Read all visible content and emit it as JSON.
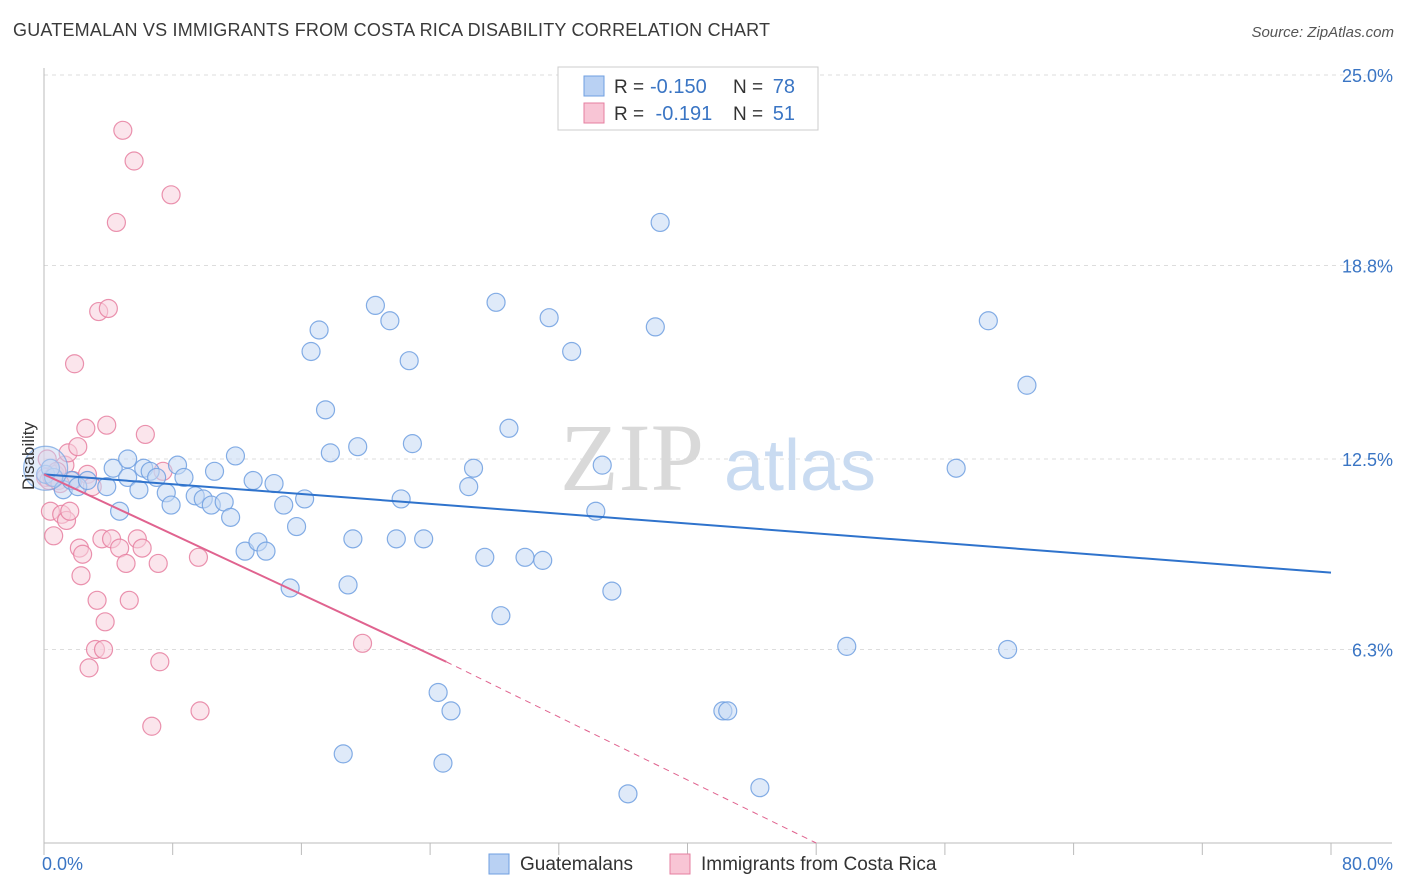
{
  "title": "GUATEMALAN VS IMMIGRANTS FROM COSTA RICA DISABILITY CORRELATION CHART",
  "source": "Source: ZipAtlas.com",
  "watermark": {
    "zip": "ZIP",
    "atlas": "atlas"
  },
  "legend_top": [
    {
      "r_label": "R =",
      "r_value": "-0.150",
      "n_label": "N =",
      "n_value": "78",
      "color": "#6f9fe0",
      "fill": "#b9d1f3"
    },
    {
      "r_label": "R =",
      "r_value": " -0.191",
      "n_label": "N =",
      "n_value": "51",
      "color": "#e67fa0",
      "fill": "#f8c5d5"
    }
  ],
  "legend_bottom": [
    {
      "label": "Guatemalans",
      "fill": "#b9d1f3",
      "stroke": "#6f9fe0"
    },
    {
      "label": "Immigrants from Costa Rica",
      "fill": "#f8c5d5",
      "stroke": "#e67fa0"
    }
  ],
  "colors": {
    "blue_point": "#6f9fe0",
    "blue_fill": "#c4d8f4",
    "blue_line": "#2f73cc",
    "pink_point": "#e67fa0",
    "pink_fill": "#f8d0dd",
    "pink_line": "#e0638f",
    "axis_text": "#3a75c4",
    "grid": "#dddddd"
  },
  "chart_data": {
    "type": "scatter",
    "xlabel": "",
    "ylabel": "Disability",
    "xlim": [
      0,
      80
    ],
    "ylim": [
      0,
      25
    ],
    "x_tick_labels": [
      {
        "value": 0,
        "label": "0.0%"
      },
      {
        "value": 80,
        "label": "80.0%"
      }
    ],
    "y_tick_labels": [
      {
        "value": 25.0,
        "label": "25.0%"
      },
      {
        "value": 18.8,
        "label": "18.8%"
      },
      {
        "value": 12.5,
        "label": "12.5%"
      },
      {
        "value": 6.3,
        "label": "6.3%"
      }
    ],
    "series": [
      {
        "name": "Guatemalans",
        "r": -0.15,
        "n": 78,
        "trend": {
          "x": [
            0,
            80
          ],
          "y": [
            12.0,
            8.8
          ]
        },
        "points": [
          [
            0.1,
            12.0
          ],
          [
            0.6,
            11.9
          ],
          [
            1.2,
            11.5
          ],
          [
            1.7,
            11.8
          ],
          [
            2.1,
            11.6
          ],
          [
            2.7,
            11.8
          ],
          [
            3.9,
            11.6
          ],
          [
            4.3,
            12.2
          ],
          [
            4.7,
            10.8
          ],
          [
            5.2,
            11.9
          ],
          [
            5.2,
            12.5
          ],
          [
            5.9,
            11.5
          ],
          [
            6.2,
            12.2
          ],
          [
            6.6,
            12.1
          ],
          [
            7.0,
            11.9
          ],
          [
            7.6,
            11.4
          ],
          [
            7.9,
            11.0
          ],
          [
            8.3,
            12.3
          ],
          [
            8.7,
            11.9
          ],
          [
            9.4,
            11.3
          ],
          [
            9.9,
            11.2
          ],
          [
            10.4,
            11.0
          ],
          [
            10.6,
            12.1
          ],
          [
            11.2,
            11.1
          ],
          [
            11.6,
            10.6
          ],
          [
            11.9,
            12.6
          ],
          [
            12.5,
            9.5
          ],
          [
            13.0,
            11.8
          ],
          [
            13.3,
            9.8
          ],
          [
            13.8,
            9.5
          ],
          [
            14.3,
            11.7
          ],
          [
            14.9,
            11.0
          ],
          [
            15.3,
            8.3
          ],
          [
            15.7,
            10.3
          ],
          [
            16.2,
            11.2
          ],
          [
            16.6,
            16.0
          ],
          [
            17.1,
            16.7
          ],
          [
            17.5,
            14.1
          ],
          [
            17.8,
            12.7
          ],
          [
            18.6,
            2.9
          ],
          [
            18.9,
            8.4
          ],
          [
            19.2,
            9.9
          ],
          [
            19.5,
            12.9
          ],
          [
            20.6,
            17.5
          ],
          [
            21.5,
            17.0
          ],
          [
            21.9,
            9.9
          ],
          [
            22.2,
            11.2
          ],
          [
            22.7,
            15.7
          ],
          [
            22.9,
            13.0
          ],
          [
            23.6,
            9.9
          ],
          [
            24.5,
            4.9
          ],
          [
            24.8,
            2.6
          ],
          [
            25.3,
            4.3
          ],
          [
            26.4,
            11.6
          ],
          [
            26.7,
            12.2
          ],
          [
            27.4,
            9.3
          ],
          [
            28.1,
            17.6
          ],
          [
            28.4,
            7.4
          ],
          [
            28.9,
            13.5
          ],
          [
            29.9,
            9.3
          ],
          [
            31.0,
            9.2
          ],
          [
            31.4,
            17.1
          ],
          [
            32.8,
            16.0
          ],
          [
            34.3,
            10.8
          ],
          [
            34.7,
            12.3
          ],
          [
            35.3,
            8.2
          ],
          [
            36.3,
            1.6
          ],
          [
            38.0,
            16.8
          ],
          [
            38.3,
            20.2
          ],
          [
            42.2,
            4.3
          ],
          [
            42.5,
            4.3
          ],
          [
            44.5,
            1.8
          ],
          [
            49.9,
            6.4
          ],
          [
            56.7,
            12.2
          ],
          [
            58.7,
            17.0
          ],
          [
            59.9,
            6.3
          ],
          [
            61.1,
            14.9
          ],
          [
            0.4,
            12.2
          ]
        ]
      },
      {
        "name": "Immigrants from Costa Rica",
        "r": -0.191,
        "n": 51,
        "trend": {
          "x": [
            0,
            25
          ],
          "y": [
            12.0,
            5.9
          ]
        },
        "trend_dashed": {
          "x": [
            25,
            48
          ],
          "y": [
            5.9,
            0.0
          ]
        },
        "points": [
          [
            0.1,
            11.9
          ],
          [
            0.3,
            11.8
          ],
          [
            0.4,
            10.8
          ],
          [
            0.6,
            10.0
          ],
          [
            0.7,
            12.0
          ],
          [
            0.9,
            11.8
          ],
          [
            1.1,
            10.7
          ],
          [
            1.3,
            12.3
          ],
          [
            1.4,
            10.5
          ],
          [
            1.5,
            12.7
          ],
          [
            1.6,
            10.8
          ],
          [
            1.8,
            11.8
          ],
          [
            1.9,
            15.6
          ],
          [
            2.1,
            12.9
          ],
          [
            2.2,
            9.6
          ],
          [
            2.3,
            8.7
          ],
          [
            2.4,
            9.4
          ],
          [
            2.6,
            13.5
          ],
          [
            2.7,
            12.0
          ],
          [
            2.8,
            5.7
          ],
          [
            3.0,
            11.6
          ],
          [
            3.2,
            6.3
          ],
          [
            3.3,
            7.9
          ],
          [
            3.4,
            17.3
          ],
          [
            3.6,
            9.9
          ],
          [
            3.7,
            6.3
          ],
          [
            3.8,
            7.2
          ],
          [
            3.9,
            13.6
          ],
          [
            4.0,
            17.4
          ],
          [
            4.2,
            9.9
          ],
          [
            4.5,
            20.2
          ],
          [
            4.7,
            9.6
          ],
          [
            4.9,
            23.2
          ],
          [
            5.1,
            9.1
          ],
          [
            5.3,
            7.9
          ],
          [
            5.6,
            22.2
          ],
          [
            5.8,
            9.9
          ],
          [
            6.1,
            9.6
          ],
          [
            6.3,
            13.3
          ],
          [
            6.7,
            3.8
          ],
          [
            7.1,
            9.1
          ],
          [
            7.2,
            5.9
          ],
          [
            7.4,
            12.1
          ],
          [
            7.9,
            21.1
          ],
          [
            9.6,
            9.3
          ],
          [
            9.7,
            4.3
          ],
          [
            19.8,
            6.5
          ],
          [
            0.2,
            12.5
          ],
          [
            0.5,
            11.9
          ],
          [
            0.8,
            12.1
          ],
          [
            1.0,
            11.7
          ]
        ]
      }
    ]
  }
}
